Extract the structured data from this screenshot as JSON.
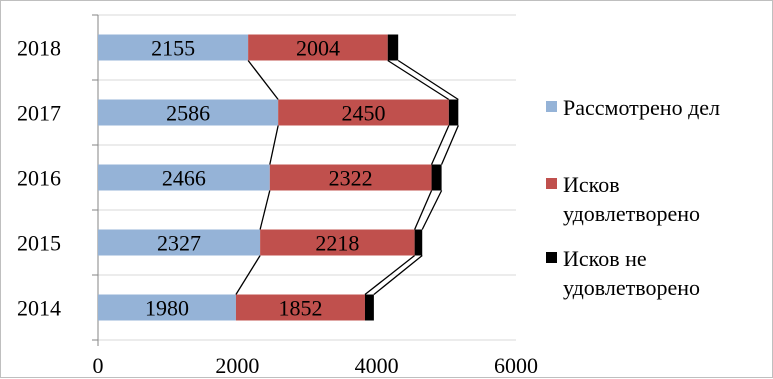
{
  "chart_data": {
    "type": "bar",
    "orientation": "horizontal",
    "stacked": true,
    "categories": [
      "2014",
      "2015",
      "2016",
      "2017",
      "2018"
    ],
    "series": [
      {
        "name": "Рассмотрено дел",
        "color": "#95b3d7",
        "values": [
          1980,
          2327,
          2466,
          2586,
          2155
        ]
      },
      {
        "name": "Исков удовлетворено",
        "color": "#c0504d",
        "values": [
          1852,
          2218,
          2322,
          2450,
          2004
        ]
      },
      {
        "name": "Исков не удовлетворено",
        "color": "#000000",
        "values": [
          128,
          109,
          144,
          136,
          150
        ]
      }
    ],
    "data_labels_series": [
      0,
      1
    ],
    "xlim": [
      0,
      6000
    ],
    "xticks": [
      0,
      2000,
      4000,
      6000
    ],
    "grid": "horizontal",
    "series_lines": true,
    "legend_position": "right"
  }
}
